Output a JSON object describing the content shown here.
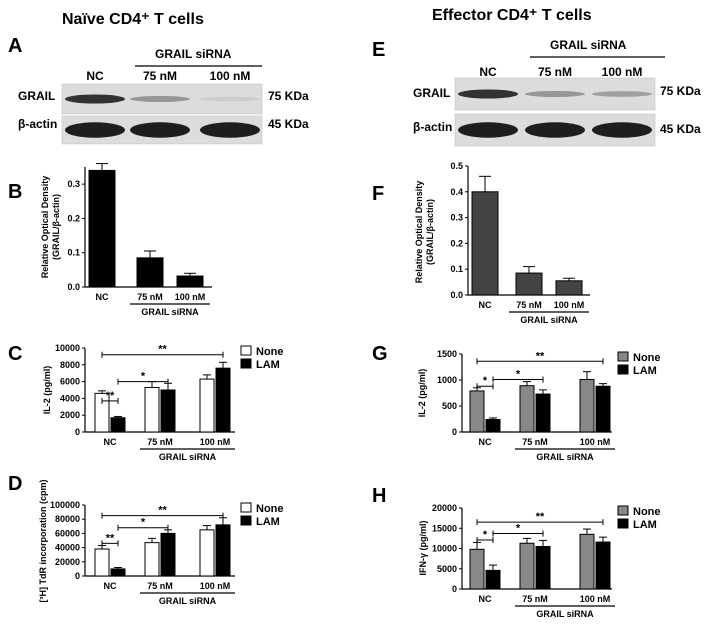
{
  "titles": {
    "left": "Naïve CD4⁺ T cells",
    "right": "Effector CD4⁺ T cells"
  },
  "blots": [
    {
      "panel": "A",
      "header": "GRAIL siRNA",
      "lanes": [
        "NC",
        "75 nM",
        "100 nM"
      ],
      "rows": [
        {
          "name": "GRAIL",
          "size": "75 KDa",
          "intensity": [
            0.85,
            0.35,
            0.08
          ]
        },
        {
          "name": "β-actin",
          "size": "45 KDa",
          "intensity": [
            0.95,
            0.95,
            0.95
          ]
        }
      ]
    },
    {
      "panel": "E",
      "header": "GRAIL siRNA",
      "lanes": [
        "NC",
        "75 nM",
        "100 nM"
      ],
      "rows": [
        {
          "name": "GRAIL",
          "size": "75 KDa",
          "intensity": [
            0.85,
            0.35,
            0.3
          ]
        },
        {
          "name": "β-actin",
          "size": "45 KDa",
          "intensity": [
            0.95,
            0.95,
            0.95
          ]
        }
      ]
    }
  ],
  "chart_data": [
    {
      "panel": "B",
      "type": "bar",
      "ylabel": "Relative Optical Density\n(GRAIL/β-actin)",
      "ylim": [
        0,
        0.35
      ],
      "yticks": [
        0.0,
        0.1,
        0.2,
        0.3
      ],
      "categories": [
        "NC",
        "75 nM",
        "100 nM"
      ],
      "group_label": "GRAIL siRNA",
      "values": [
        0.34,
        0.085,
        0.032
      ],
      "errors": [
        0.02,
        0.02,
        0.008
      ],
      "color": "#000000"
    },
    {
      "panel": "F",
      "type": "bar",
      "ylabel": "Relative Optical Density\n(GRAIL/β-actin)",
      "ylim": [
        0,
        0.5
      ],
      "yticks": [
        0.0,
        0.1,
        0.2,
        0.3,
        0.4,
        0.5
      ],
      "categories": [
        "NC",
        "75 nM",
        "100 nM"
      ],
      "group_label": "GRAIL siRNA",
      "values": [
        0.4,
        0.085,
        0.055
      ],
      "errors": [
        0.06,
        0.025,
        0.01
      ],
      "color": "#444444"
    },
    {
      "panel": "C",
      "type": "bar",
      "ylabel": "IL-2 (pg/ml)",
      "ylim": [
        0,
        10000
      ],
      "yticks": [
        0,
        2000,
        4000,
        6000,
        8000,
        10000
      ],
      "categories": [
        "NC",
        "75 nM",
        "100 nM"
      ],
      "group_label": "GRAIL siRNA",
      "legend": [
        "None",
        "LAM"
      ],
      "series": [
        {
          "name": "None",
          "values": [
            4600,
            5300,
            6300
          ],
          "errors": [
            300,
            700,
            500
          ],
          "color": "#ffffff"
        },
        {
          "name": "LAM",
          "values": [
            1700,
            5000,
            7600
          ],
          "errors": [
            150,
            800,
            700
          ],
          "color": "#000000"
        }
      ],
      "annotations": [
        {
          "label": "**",
          "from": [
            0,
            0
          ],
          "to": [
            0,
            1
          ],
          "y": 3700
        },
        {
          "label": "*",
          "from": [
            0,
            1
          ],
          "to": [
            1,
            1
          ],
          "y": 6000
        },
        {
          "label": "**",
          "from": [
            0,
            0
          ],
          "to": [
            2,
            1
          ],
          "y": 9200
        }
      ]
    },
    {
      "panel": "G",
      "type": "bar",
      "ylabel": "IL-2 (pg/ml)",
      "ylim": [
        0,
        1500
      ],
      "yticks": [
        0,
        500,
        1000,
        1500
      ],
      "categories": [
        "NC",
        "75 nM",
        "100 nM"
      ],
      "group_label": "GRAIL siRNA",
      "legend": [
        "None",
        "LAM"
      ],
      "series": [
        {
          "name": "None",
          "values": [
            790,
            890,
            1010
          ],
          "errors": [
            60,
            80,
            150
          ],
          "color": "#888888"
        },
        {
          "name": "LAM",
          "values": [
            240,
            730,
            880
          ],
          "errors": [
            30,
            80,
            50
          ],
          "color": "#000000"
        }
      ],
      "annotations": [
        {
          "label": "*",
          "from": [
            0,
            0
          ],
          "to": [
            0,
            1
          ],
          "y": 880
        },
        {
          "label": "*",
          "from": [
            0,
            1
          ],
          "to": [
            1,
            1
          ],
          "y": 1010
        },
        {
          "label": "**",
          "from": [
            0,
            0
          ],
          "to": [
            2,
            1
          ],
          "y": 1360
        }
      ]
    },
    {
      "panel": "D",
      "type": "bar",
      "ylabel": "[³H] TdR incorporation (cpm)",
      "ylim": [
        0,
        100000
      ],
      "yticks": [
        0,
        20000,
        40000,
        60000,
        80000,
        100000
      ],
      "categories": [
        "NC",
        "75 nM",
        "100 nM"
      ],
      "group_label": "GRAIL siRNA",
      "legend": [
        "None",
        "LAM"
      ],
      "series": [
        {
          "name": "None",
          "values": [
            38000,
            47000,
            65000
          ],
          "errors": [
            5000,
            6000,
            6000
          ],
          "color": "#ffffff"
        },
        {
          "name": "LAM",
          "values": [
            10000,
            60000,
            72000
          ],
          "errors": [
            2000,
            5000,
            10000
          ],
          "color": "#000000"
        }
      ],
      "annotations": [
        {
          "label": "**",
          "from": [
            0,
            0
          ],
          "to": [
            0,
            1
          ],
          "y": 46000
        },
        {
          "label": "*",
          "from": [
            0,
            1
          ],
          "to": [
            1,
            1
          ],
          "y": 68000
        },
        {
          "label": "**",
          "from": [
            0,
            0
          ],
          "to": [
            2,
            1
          ],
          "y": 85000
        }
      ]
    },
    {
      "panel": "H",
      "type": "bar",
      "ylabel": "IFN-γ (pg/ml)",
      "ylim": [
        0,
        20000
      ],
      "yticks": [
        0,
        5000,
        10000,
        15000,
        20000
      ],
      "categories": [
        "NC",
        "75 nM",
        "100 nM"
      ],
      "group_label": "GRAIL siRNA",
      "legend": [
        "None",
        "LAM"
      ],
      "series": [
        {
          "name": "None",
          "values": [
            9800,
            11300,
            13500
          ],
          "errors": [
            1700,
            1200,
            1300
          ],
          "color": "#888888"
        },
        {
          "name": "LAM",
          "values": [
            4600,
            10500,
            11600
          ],
          "errors": [
            1300,
            1500,
            1200
          ],
          "color": "#000000"
        }
      ],
      "annotations": [
        {
          "label": "*",
          "from": [
            0,
            0
          ],
          "to": [
            0,
            1
          ],
          "y": 12100
        },
        {
          "label": "*",
          "from": [
            0,
            1
          ],
          "to": [
            1,
            1
          ],
          "y": 13700
        },
        {
          "label": "**",
          "from": [
            0,
            0
          ],
          "to": [
            2,
            1
          ],
          "y": 16500
        }
      ]
    }
  ]
}
